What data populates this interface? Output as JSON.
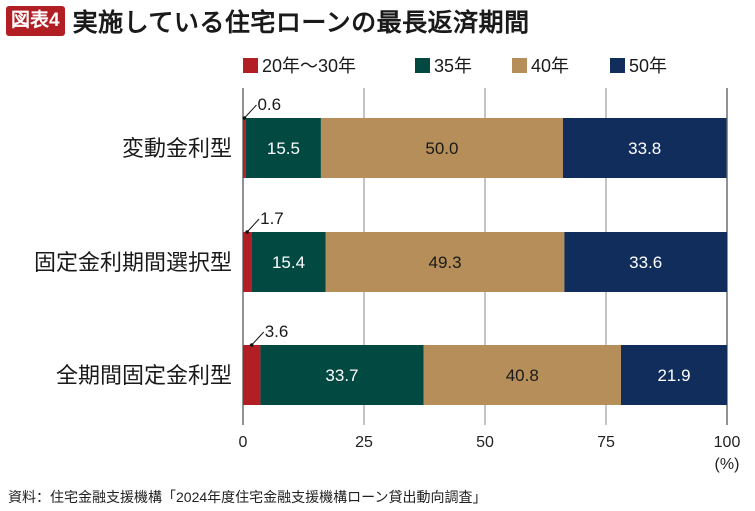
{
  "header": {
    "badge": "図表4",
    "title": "実施している住宅ローンの最長返済期間"
  },
  "source": "資料：住宅金融支援機構「2024年度住宅金融支援機構ローン貸出動向調査」",
  "chart_data": {
    "type": "bar",
    "orientation": "horizontal",
    "stacked": true,
    "title": "実施している住宅ローンの最長返済期間",
    "xlabel": "(%)",
    "ylabel": "",
    "xlim": [
      0,
      100
    ],
    "xticks": [
      0,
      25,
      50,
      75,
      100
    ],
    "grid": true,
    "legend_position": "top-right",
    "categories": [
      "変動金利型",
      "固定金利期間選択型",
      "全期間固定金利型"
    ],
    "series": [
      {
        "name": "20年～30年",
        "color": "#b11e23",
        "label_color": "#1a1a1a",
        "values": [
          0.6,
          1.7,
          3.6
        ],
        "label_outside": true
      },
      {
        "name": "35年",
        "color": "#024a41",
        "label_color": "#ffffff",
        "values": [
          15.5,
          15.4,
          33.7
        ]
      },
      {
        "name": "40年",
        "color": "#b58e5a",
        "label_color": "#1a1a1a",
        "values": [
          50.0,
          49.3,
          40.8
        ]
      },
      {
        "name": "50年",
        "color": "#112d5c",
        "label_color": "#ffffff",
        "values": [
          33.8,
          33.6,
          21.9
        ]
      }
    ]
  }
}
